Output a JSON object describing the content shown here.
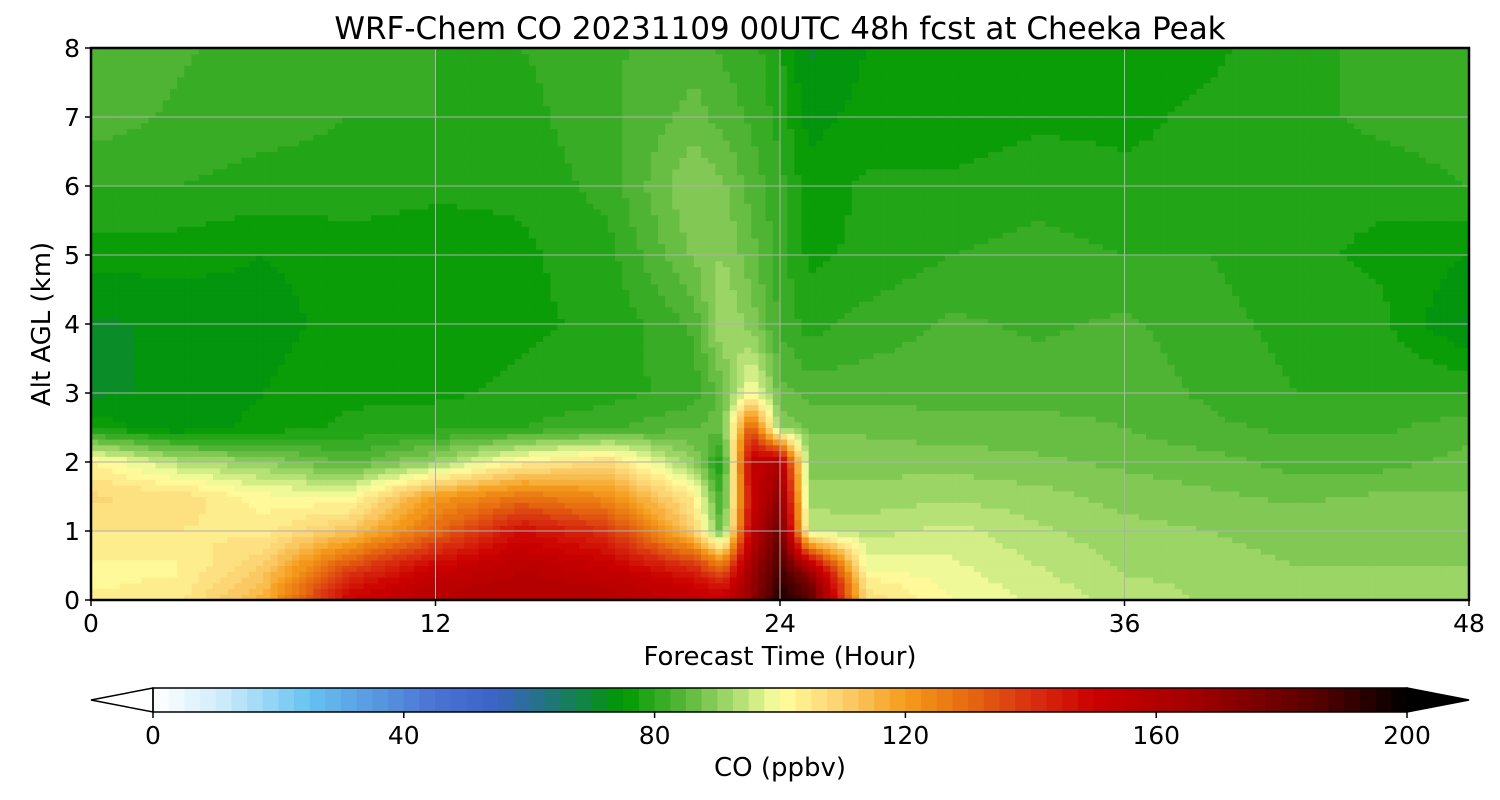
{
  "chart_data": {
    "type": "heatmap",
    "title": "WRF-Chem CO  20231109 00UTC 48h fcst at Cheeka Peak",
    "xlabel": "Forecast Time (Hour)",
    "ylabel": "Alt AGL (km)",
    "xlim": [
      0,
      48
    ],
    "ylim": [
      0,
      8
    ],
    "x_ticks": [
      "0",
      "12",
      "24",
      "36",
      "48"
    ],
    "y_ticks": [
      "0",
      "1",
      "2",
      "3",
      "4",
      "5",
      "6",
      "7",
      "8"
    ],
    "grid": true,
    "colorbar": {
      "label": "CO  (ppbv)",
      "range": [
        0,
        200
      ],
      "ticks": [
        "0",
        "40",
        "80",
        "120",
        "160",
        "200"
      ],
      "extend": "both",
      "stops": [
        {
          "v": 0,
          "c": "#ffffff"
        },
        {
          "v": 10,
          "c": "#d4eefb"
        },
        {
          "v": 25,
          "c": "#66c2f0"
        },
        {
          "v": 45,
          "c": "#4a73d2"
        },
        {
          "v": 55,
          "c": "#3b63c4"
        },
        {
          "v": 65,
          "c": "#1a7a6a"
        },
        {
          "v": 75,
          "c": "#009900"
        },
        {
          "v": 85,
          "c": "#5ab83a"
        },
        {
          "v": 92,
          "c": "#a2d86a"
        },
        {
          "v": 100,
          "c": "#ffffa0"
        },
        {
          "v": 110,
          "c": "#fbcf6e"
        },
        {
          "v": 120,
          "c": "#f59c1a"
        },
        {
          "v": 130,
          "c": "#e66a10"
        },
        {
          "v": 140,
          "c": "#d83010"
        },
        {
          "v": 150,
          "c": "#cc0000"
        },
        {
          "v": 165,
          "c": "#a50000"
        },
        {
          "v": 185,
          "c": "#5a0000"
        },
        {
          "v": 200,
          "c": "#000000"
        }
      ]
    },
    "field": {
      "x": [
        0,
        3,
        6,
        9,
        12,
        15,
        18,
        21,
        22,
        23,
        24,
        25,
        27,
        30,
        33,
        36,
        39,
        42,
        45,
        48
      ],
      "y": [
        0,
        0.25,
        0.5,
        1,
        1.5,
        2,
        2.5,
        3,
        4,
        5,
        6,
        7,
        8
      ],
      "values": [
        [
          103,
          104,
          116,
          150,
          158,
          160,
          159,
          154,
          152,
          170,
          196,
          185,
          107,
          100,
          97,
          94,
          92,
          92,
          92,
          92
        ],
        [
          102,
          103,
          113,
          145,
          156,
          159,
          157,
          150,
          143,
          168,
          192,
          180,
          104,
          99,
          96,
          93,
          92,
          91,
          91,
          91
        ],
        [
          102,
          102,
          110,
          135,
          150,
          157,
          152,
          140,
          128,
          165,
          188,
          160,
          99,
          98,
          95,
          92,
          91,
          90,
          90,
          90
        ],
        [
          105,
          105,
          104,
          112,
          130,
          148,
          140,
          110,
          84,
          155,
          180,
          95,
          94,
          96,
          93,
          91,
          90,
          89,
          89,
          90
        ],
        [
          108,
          107,
          101,
          100,
          120,
          128,
          123,
          104,
          80,
          150,
          172,
          91,
          91,
          92,
          91,
          89,
          88,
          87,
          88,
          88
        ],
        [
          103,
          94,
          90,
          84,
          91,
          103,
          108,
          90,
          77,
          155,
          160,
          89,
          89,
          89,
          88,
          87,
          86,
          84,
          84,
          86
        ],
        [
          77,
          73,
          76,
          78,
          79,
          80,
          82,
          85,
          86,
          135,
          90,
          87,
          87,
          86,
          86,
          85,
          83,
          82,
          82,
          84
        ],
        [
          72,
          73,
          75,
          77,
          77,
          78,
          79,
          81,
          86,
          101,
          86,
          84,
          84,
          84,
          84,
          84,
          82,
          80,
          80,
          80
        ],
        [
          72,
          73,
          74,
          76,
          76,
          77,
          78,
          83,
          93,
          89,
          82,
          79,
          81,
          83,
          82,
          83,
          81,
          79,
          78,
          72
        ],
        [
          76,
          76,
          75,
          76,
          76,
          77,
          79,
          88,
          90,
          86,
          81,
          77,
          78,
          80,
          81,
          80,
          80,
          78,
          77,
          75
        ],
        [
          80,
          80,
          79,
          79,
          78,
          78,
          81,
          90,
          88,
          84,
          81,
          76,
          78,
          78,
          79,
          78,
          78,
          78,
          78,
          80
        ],
        [
          84,
          82,
          81,
          80,
          80,
          79,
          82,
          86,
          84,
          82,
          79,
          74,
          76,
          76,
          77,
          77,
          78,
          79,
          81,
          82
        ],
        [
          84,
          83,
          81,
          81,
          80,
          80,
          82,
          84,
          82,
          81,
          78,
          72,
          75,
          75,
          76,
          76,
          77,
          79,
          81,
          82
        ]
      ]
    }
  }
}
